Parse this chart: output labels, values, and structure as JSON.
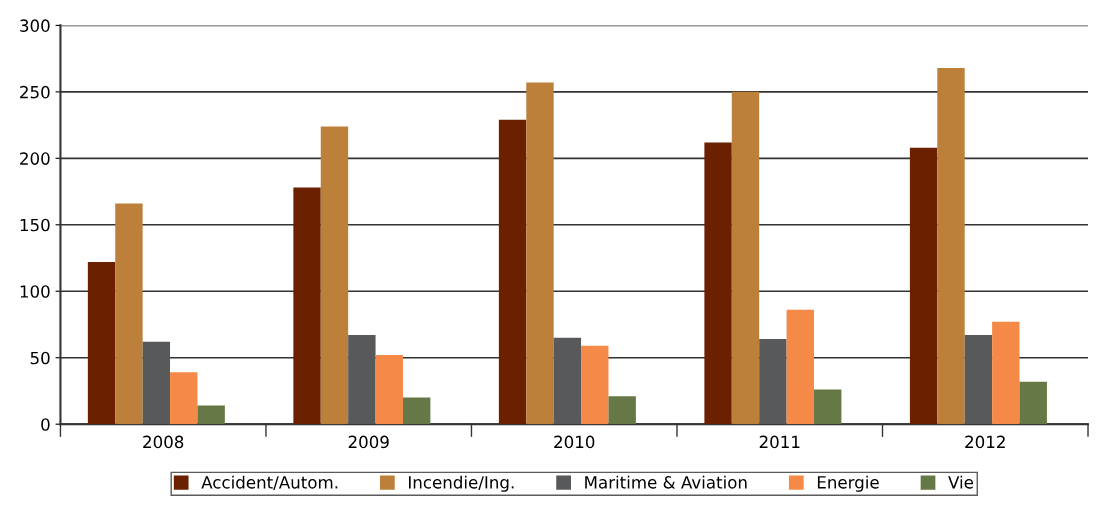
{
  "chart_data": {
    "type": "bar",
    "categories": [
      "2008",
      "2009",
      "2010",
      "2011",
      "2012"
    ],
    "series": [
      {
        "name": "Accident/Autom.",
        "color": "#6b2000",
        "values": [
          122,
          178,
          229,
          212,
          208
        ]
      },
      {
        "name": "Incendie/Ing.",
        "color": "#bc803a",
        "values": [
          166,
          224,
          257,
          250,
          268
        ]
      },
      {
        "name": "Maritime & Aviation",
        "color": "#58595b",
        "values": [
          62,
          67,
          65,
          64,
          67
        ]
      },
      {
        "name": "Energie",
        "color": "#f58a48",
        "values": [
          39,
          52,
          59,
          86,
          77
        ]
      },
      {
        "name": "Vie",
        "color": "#667845",
        "values": [
          14,
          20,
          21,
          26,
          32
        ]
      }
    ],
    "ylim": [
      0,
      300
    ],
    "yticks": [
      0,
      50,
      100,
      150,
      200,
      250,
      300
    ],
    "grid": "y",
    "legend": "bottom"
  }
}
